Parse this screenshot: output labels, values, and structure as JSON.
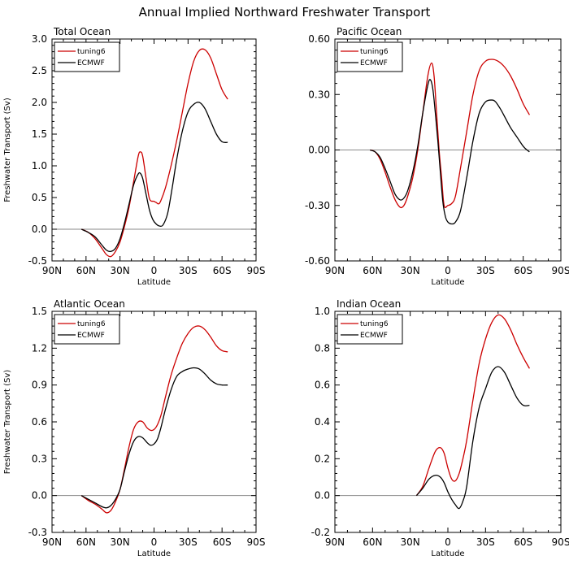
{
  "title": "Annual Implied Northward Freshwater Transport",
  "chart_data": [
    {
      "type": "line",
      "title": "Total Ocean",
      "xlabel": "Latitude",
      "ylabel": "Freshwater Transport (Sv)",
      "xlim": [
        -90,
        90
      ],
      "ylim": [
        -0.5,
        3.0
      ],
      "x_ticks": [
        -90,
        -60,
        -30,
        0,
        30,
        60,
        90
      ],
      "x_tick_labels": [
        "90N",
        "60N",
        "30N",
        "0",
        "30S",
        "60S",
        "90S"
      ],
      "y_ticks": [
        -0.5,
        0.0,
        0.5,
        1.0,
        1.5,
        2.0,
        2.5,
        3.0
      ],
      "y_tick_labels": [
        "-0.5",
        "0.0",
        "0.5",
        "1.0",
        "1.5",
        "2.0",
        "2.5",
        "3.0"
      ],
      "zero_line": true,
      "legend_position": "top-left",
      "series": [
        {
          "name": "tuning6",
          "color": "#cc0000",
          "x": [
            -64,
            -58,
            -52,
            -46,
            -42,
            -38,
            -34,
            -30,
            -26,
            -22,
            -18,
            -14,
            -12,
            -10,
            -7,
            -4,
            0,
            2,
            4,
            6,
            10,
            15,
            20,
            25,
            30,
            35,
            40,
            45,
            50,
            55,
            60,
            65
          ],
          "y": [
            0.0,
            -0.05,
            -0.15,
            -0.3,
            -0.4,
            -0.43,
            -0.35,
            -0.2,
            0.05,
            0.35,
            0.75,
            1.15,
            1.22,
            1.15,
            0.8,
            0.48,
            0.44,
            0.42,
            0.4,
            0.45,
            0.65,
            1.0,
            1.4,
            1.85,
            2.3,
            2.65,
            2.82,
            2.83,
            2.7,
            2.45,
            2.2,
            2.05
          ]
        },
        {
          "name": "ECMWF",
          "color": "#000000",
          "x": [
            -64,
            -58,
            -52,
            -46,
            -42,
            -38,
            -34,
            -30,
            -26,
            -22,
            -18,
            -14,
            -12,
            -10,
            -7,
            -4,
            -1,
            2,
            5,
            8,
            12,
            16,
            20,
            25,
            30,
            35,
            40,
            45,
            50,
            55,
            60,
            65
          ],
          "y": [
            0.0,
            -0.05,
            -0.12,
            -0.25,
            -0.33,
            -0.35,
            -0.3,
            -0.15,
            0.1,
            0.4,
            0.7,
            0.87,
            0.88,
            0.8,
            0.55,
            0.3,
            0.15,
            0.08,
            0.05,
            0.07,
            0.25,
            0.65,
            1.1,
            1.55,
            1.85,
            1.97,
            2.0,
            1.9,
            1.7,
            1.5,
            1.38,
            1.37
          ]
        }
      ]
    },
    {
      "type": "line",
      "title": "Pacific Ocean",
      "xlabel": "Latitude",
      "ylabel": "",
      "xlim": [
        -90,
        90
      ],
      "ylim": [
        -0.6,
        0.6
      ],
      "x_ticks": [
        -90,
        -60,
        -30,
        0,
        30,
        60,
        90
      ],
      "x_tick_labels": [
        "90N",
        "60N",
        "30N",
        "0",
        "30S",
        "60S",
        "90S"
      ],
      "y_ticks": [
        -0.6,
        -0.3,
        0.0,
        0.3,
        0.6
      ],
      "y_tick_labels": [
        "-0.60",
        "-0.30",
        "0.00",
        "0.30",
        "0.60"
      ],
      "zero_line": true,
      "legend_position": "top-left",
      "series": [
        {
          "name": "tuning6",
          "color": "#cc0000",
          "x": [
            -62,
            -58,
            -54,
            -50,
            -46,
            -42,
            -38,
            -35,
            -32,
            -28,
            -24,
            -20,
            -16,
            -13,
            -11,
            -9,
            -7,
            -5,
            -3,
            0,
            3,
            6,
            10,
            15,
            20,
            25,
            30,
            35,
            40,
            45,
            50,
            55,
            60,
            65
          ],
          "y": [
            0.0,
            -0.01,
            -0.05,
            -0.12,
            -0.2,
            -0.27,
            -0.31,
            -0.3,
            -0.25,
            -0.15,
            0.0,
            0.2,
            0.4,
            0.47,
            0.4,
            0.2,
            0.0,
            -0.15,
            -0.3,
            -0.3,
            -0.29,
            -0.25,
            -0.1,
            0.1,
            0.3,
            0.43,
            0.48,
            0.49,
            0.48,
            0.45,
            0.4,
            0.33,
            0.25,
            0.19
          ]
        },
        {
          "name": "ECMWF",
          "color": "#000000",
          "x": [
            -62,
            -58,
            -54,
            -50,
            -46,
            -42,
            -38,
            -35,
            -32,
            -28,
            -24,
            -20,
            -16,
            -14,
            -12,
            -10,
            -8,
            -6,
            -4,
            -2,
            0,
            3,
            6,
            10,
            15,
            20,
            25,
            30,
            35,
            38,
            42,
            46,
            50,
            55,
            60,
            63,
            65
          ],
          "y": [
            0.0,
            -0.01,
            -0.04,
            -0.1,
            -0.17,
            -0.24,
            -0.27,
            -0.26,
            -0.22,
            -0.12,
            0.02,
            0.2,
            0.35,
            0.38,
            0.33,
            0.2,
            0.05,
            -0.12,
            -0.28,
            -0.36,
            -0.39,
            -0.4,
            -0.39,
            -0.33,
            -0.15,
            0.05,
            0.2,
            0.26,
            0.27,
            0.26,
            0.22,
            0.17,
            0.12,
            0.07,
            0.02,
            0.0,
            -0.01
          ]
        }
      ]
    },
    {
      "type": "line",
      "title": "Atlantic Ocean",
      "xlabel": "Latitude",
      "ylabel": "Freshwater Transport (Sv)",
      "xlim": [
        -90,
        90
      ],
      "ylim": [
        -0.3,
        1.5
      ],
      "x_ticks": [
        -90,
        -60,
        -30,
        0,
        30,
        60,
        90
      ],
      "x_tick_labels": [
        "90N",
        "60N",
        "30N",
        "0",
        "30S",
        "60S",
        "90S"
      ],
      "y_ticks": [
        -0.3,
        0.0,
        0.3,
        0.6,
        0.9,
        1.2,
        1.5
      ],
      "y_tick_labels": [
        "-0.3",
        "0.0",
        "0.3",
        "0.6",
        "0.9",
        "1.2",
        "1.5"
      ],
      "zero_line": true,
      "legend_position": "top-left",
      "series": [
        {
          "name": "tuning6",
          "color": "#cc0000",
          "x": [
            -64,
            -58,
            -52,
            -46,
            -42,
            -38,
            -34,
            -30,
            -26,
            -22,
            -18,
            -14,
            -10,
            -6,
            -2,
            2,
            6,
            10,
            15,
            20,
            25,
            30,
            35,
            40,
            45,
            50,
            55,
            60,
            65
          ],
          "y": [
            0.0,
            -0.04,
            -0.07,
            -0.11,
            -0.14,
            -0.12,
            -0.05,
            0.05,
            0.22,
            0.4,
            0.54,
            0.6,
            0.6,
            0.55,
            0.53,
            0.56,
            0.65,
            0.8,
            0.98,
            1.12,
            1.24,
            1.32,
            1.37,
            1.38,
            1.35,
            1.29,
            1.22,
            1.18,
            1.17
          ]
        },
        {
          "name": "ECMWF",
          "color": "#000000",
          "x": [
            -64,
            -58,
            -52,
            -46,
            -42,
            -38,
            -34,
            -30,
            -26,
            -22,
            -18,
            -14,
            -10,
            -6,
            -3,
            0,
            3,
            6,
            10,
            15,
            20,
            25,
            30,
            35,
            40,
            45,
            50,
            55,
            60,
            65
          ],
          "y": [
            0.0,
            -0.03,
            -0.06,
            -0.09,
            -0.1,
            -0.08,
            -0.03,
            0.05,
            0.2,
            0.34,
            0.44,
            0.48,
            0.47,
            0.43,
            0.41,
            0.42,
            0.46,
            0.55,
            0.7,
            0.86,
            0.97,
            1.01,
            1.03,
            1.04,
            1.03,
            0.99,
            0.94,
            0.91,
            0.9,
            0.9
          ]
        }
      ]
    },
    {
      "type": "line",
      "title": "Indian Ocean",
      "xlabel": "Latitude",
      "ylabel": "",
      "xlim": [
        -90,
        90
      ],
      "ylim": [
        -0.2,
        1.0
      ],
      "x_ticks": [
        -90,
        -60,
        -30,
        0,
        30,
        60,
        90
      ],
      "x_tick_labels": [
        "90N",
        "60N",
        "30N",
        "0",
        "30S",
        "60S",
        "90S"
      ],
      "y_ticks": [
        -0.2,
        0.0,
        0.2,
        0.4,
        0.6,
        0.8,
        1.0
      ],
      "y_tick_labels": [
        "-0.2",
        "0.0",
        "0.2",
        "0.4",
        "0.6",
        "0.8",
        "1.0"
      ],
      "zero_line": true,
      "legend_position": "top-left",
      "series": [
        {
          "name": "tuning6",
          "color": "#cc0000",
          "x": [
            -25,
            -20,
            -15,
            -10,
            -6,
            -3,
            0,
            3,
            6,
            9,
            12,
            15,
            20,
            25,
            30,
            35,
            40,
            45,
            50,
            55,
            60,
            65
          ],
          "y": [
            0.0,
            0.05,
            0.15,
            0.24,
            0.26,
            0.23,
            0.15,
            0.09,
            0.08,
            0.12,
            0.2,
            0.3,
            0.52,
            0.72,
            0.85,
            0.94,
            0.98,
            0.96,
            0.9,
            0.82,
            0.75,
            0.69
          ]
        },
        {
          "name": "ECMWF",
          "color": "#000000",
          "x": [
            -25,
            -20,
            -15,
            -10,
            -6,
            -3,
            0,
            3,
            6,
            9,
            12,
            15,
            20,
            25,
            30,
            35,
            40,
            45,
            50,
            55,
            60,
            65
          ],
          "y": [
            0.0,
            0.04,
            0.09,
            0.11,
            0.1,
            0.07,
            0.02,
            -0.02,
            -0.05,
            -0.07,
            -0.03,
            0.05,
            0.3,
            0.48,
            0.58,
            0.67,
            0.7,
            0.67,
            0.6,
            0.53,
            0.49,
            0.49
          ]
        }
      ]
    }
  ]
}
